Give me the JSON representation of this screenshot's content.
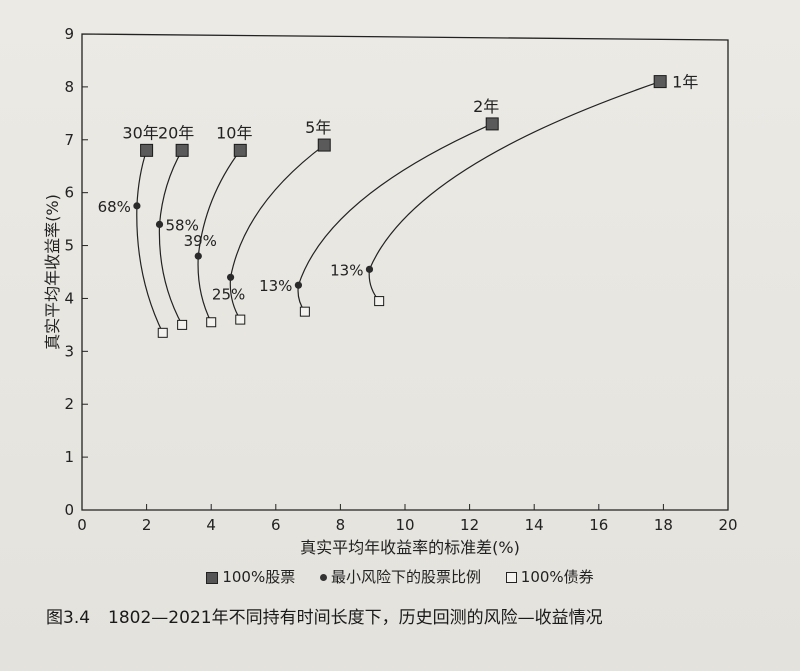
{
  "chart_data": {
    "type": "line",
    "xlabel": "真实平均年收益率的标准差(%)",
    "ylabel": "真实平均年收益率(%)",
    "xlim": [
      0,
      20
    ],
    "ylim": [
      0,
      9
    ],
    "x_ticks": [
      "0",
      "2",
      "4",
      "6",
      "8",
      "10",
      "12",
      "14",
      "16",
      "18",
      "20"
    ],
    "y_ticks": [
      "0",
      "1",
      "2",
      "3",
      "4",
      "5",
      "6",
      "7",
      "8",
      "9"
    ],
    "series": [
      {
        "name": "1年",
        "stock": [
          17.9,
          8.1
        ],
        "minrisk": [
          8.9,
          4.55
        ],
        "minrisk_label": "13%",
        "bond": [
          9.2,
          3.95
        ]
      },
      {
        "name": "2年",
        "stock": [
          12.7,
          7.3
        ],
        "minrisk": [
          6.7,
          4.25
        ],
        "minrisk_label": "13%",
        "bond": [
          6.9,
          3.75
        ]
      },
      {
        "name": "5年",
        "stock": [
          7.5,
          6.9
        ],
        "minrisk": [
          4.6,
          4.4
        ],
        "minrisk_label": "25%",
        "bond": [
          4.9,
          3.6
        ]
      },
      {
        "name": "10年",
        "stock": [
          4.9,
          6.8
        ],
        "minrisk": [
          3.6,
          4.8
        ],
        "minrisk_label": "39%",
        "bond": [
          4.0,
          3.55
        ]
      },
      {
        "name": "20年",
        "stock": [
          3.1,
          6.8
        ],
        "minrisk": [
          2.4,
          5.4
        ],
        "minrisk_label": "58%",
        "bond": [
          3.1,
          3.5
        ]
      },
      {
        "name": "30年",
        "stock": [
          2.0,
          6.8
        ],
        "minrisk": [
          1.7,
          5.75
        ],
        "minrisk_label": "68%",
        "bond": [
          2.5,
          3.35
        ]
      }
    ],
    "legend": [
      "100%股票",
      "最小风险下的股票比例",
      "100%债券"
    ],
    "legend_position": "bottom"
  },
  "caption": {
    "number": "图3.4",
    "text": "1802—2021年不同持有时间长度下，历史回测的风险—收益情况"
  }
}
